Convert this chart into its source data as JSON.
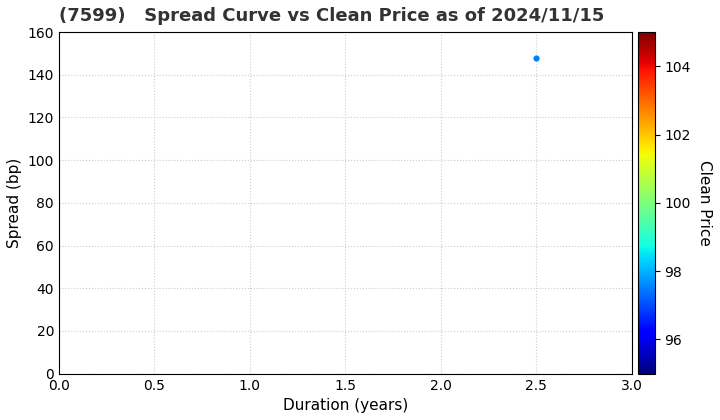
{
  "title": "(7599)   Spread Curve vs Clean Price as of 2024/11/15",
  "xlabel": "Duration (years)",
  "ylabel": "Spread (bp)",
  "colorbar_label": "Clean Price",
  "xlim": [
    0.0,
    3.0
  ],
  "ylim": [
    0,
    160
  ],
  "xticks": [
    0.0,
    0.5,
    1.0,
    1.5,
    2.0,
    2.5,
    3.0
  ],
  "yticks": [
    0,
    20,
    40,
    60,
    80,
    100,
    120,
    140,
    160
  ],
  "colorbar_ticks": [
    96,
    98,
    100,
    102,
    104
  ],
  "colorbar_vmin": 95,
  "colorbar_vmax": 105,
  "scatter_x": [
    2.5
  ],
  "scatter_y": [
    148
  ],
  "scatter_price": [
    97.5
  ],
  "scatter_size": 20,
  "background_color": "#ffffff",
  "title_fontsize": 13,
  "axis_label_fontsize": 11,
  "tick_fontsize": 10,
  "colorbar_fontsize": 11,
  "grid_color": "#cccccc",
  "grid_linestyle": ":"
}
